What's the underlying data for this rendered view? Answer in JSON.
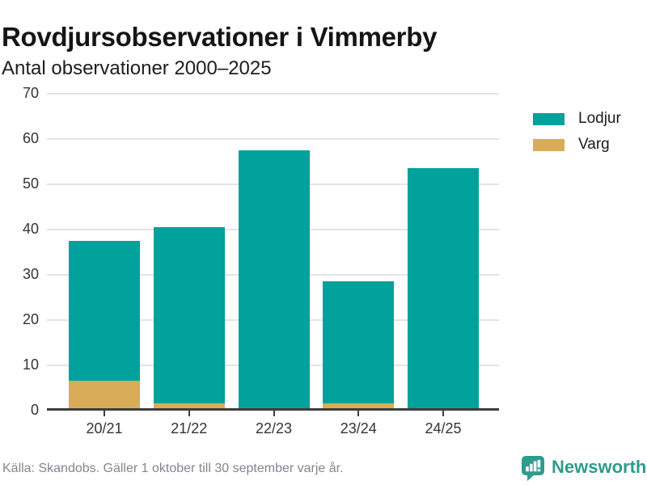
{
  "chart_data": {
    "type": "bar",
    "stacked": true,
    "title": "Rovdjursobservationer i Vimmerby",
    "subtitle": "Antal observationer 2000–2025",
    "categories": [
      "20/21",
      "21/22",
      "22/23",
      "23/24",
      "24/25"
    ],
    "series": [
      {
        "name": "Lodjur",
        "color": "#00a29b",
        "values": [
          31,
          39,
          57,
          27,
          53
        ]
      },
      {
        "name": "Varg",
        "color": "#d9ac57",
        "values": [
          6,
          1,
          0,
          1,
          0
        ]
      }
    ],
    "stack_order_bottom_to_top": [
      "Varg",
      "Lodjur"
    ],
    "stack_totals": [
      37,
      40,
      57,
      28,
      53
    ],
    "ylim": [
      0,
      70
    ],
    "yticks": [
      0,
      10,
      20,
      30,
      40,
      50,
      60,
      70
    ],
    "grid": "horizontal",
    "legend_position": "right-top"
  },
  "footer": {
    "source": "Källa: Skandobs. Gäller 1 oktober till 30 september varje år."
  },
  "branding": {
    "name": "Newsworthy",
    "icon": "newsworthy-logo-icon",
    "color": "#2f9b8c"
  }
}
